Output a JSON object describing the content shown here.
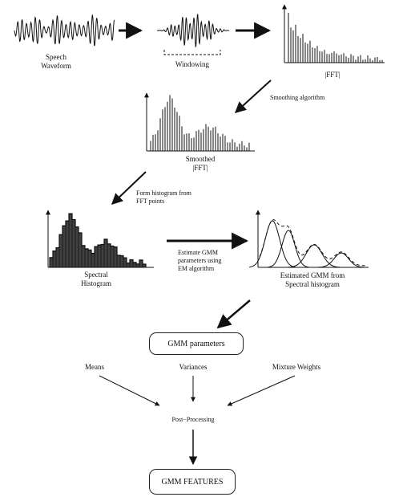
{
  "labels": {
    "speech": [
      "Speech",
      "Waveform"
    ],
    "windowing": "Windowing",
    "fft": "|FFT|",
    "smoothing": "Smoothing algorithm",
    "smoothed": [
      "Smoothed",
      "|FFT|"
    ],
    "form_hist": [
      "Form histogram from",
      "FFT points"
    ],
    "spectral_hist": [
      "Spectral",
      "Histogram"
    ],
    "estimate_gmm": [
      "Estimate GMM",
      "parameters using",
      "EM algorithm"
    ],
    "estimated_gmm": [
      "Estimated GMM from",
      "Spectral histogram"
    ],
    "gmm_parameters": "GMM parameters",
    "means": "Means",
    "variances": "Variances",
    "mixture_weights": "Mixture Weights",
    "post_processing": "Post−Processing",
    "gmm_features": "GMM FEATURES"
  },
  "colors": {
    "ink": "#111111",
    "background": "#ffffff"
  }
}
